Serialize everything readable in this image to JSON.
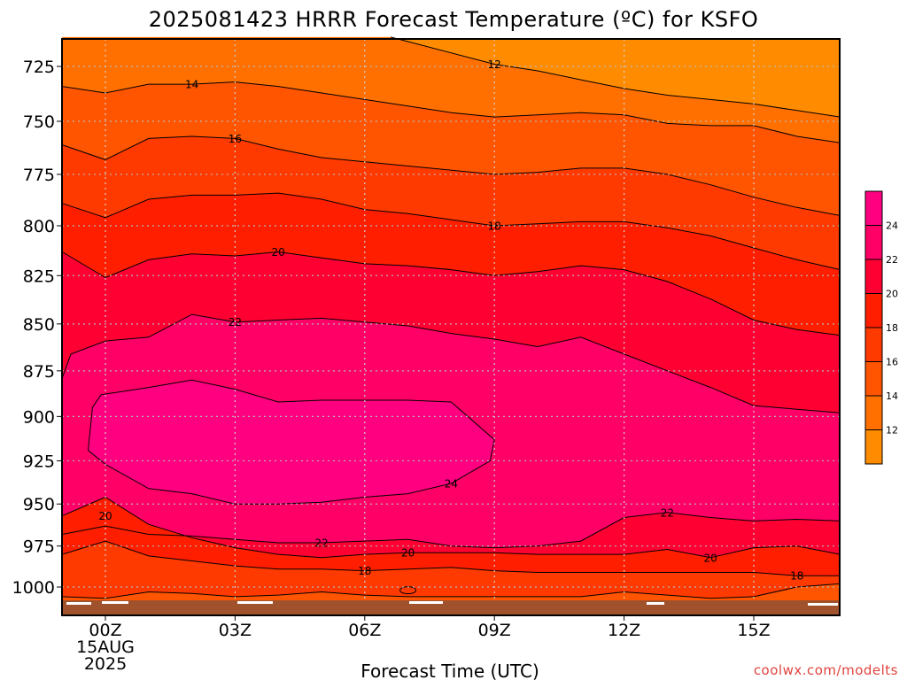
{
  "title": "2025081423 HRRR Forecast Temperature (ºC) for KSFO",
  "credit": "coolwx.com/modelts",
  "chart_data": {
    "type": "heatmap",
    "title": "2025081423 HRRR Forecast Temperature (ºC) for KSFO",
    "xlabel": "Forecast Time (UTC)",
    "ylabel": "",
    "x_ticks": [
      {
        "hour": 0,
        "label": "00Z",
        "sub": [
          "15AUG",
          "2025"
        ]
      },
      {
        "hour": 3,
        "label": "03Z",
        "sub": []
      },
      {
        "hour": 6,
        "label": "06Z",
        "sub": []
      },
      {
        "hour": 9,
        "label": "09Z",
        "sub": []
      },
      {
        "hour": 12,
        "label": "12Z",
        "sub": []
      },
      {
        "hour": 15,
        "label": "15Z",
        "sub": []
      }
    ],
    "xlim_hours": [
      -1,
      17
    ],
    "y_ticks": [
      725,
      750,
      775,
      800,
      825,
      850,
      875,
      900,
      925,
      950,
      975,
      1000
    ],
    "ylim_hPa": [
      712,
      1012
    ],
    "y_scale": "log-pressure (inverted)",
    "grid": true,
    "colorbar": {
      "ticks": [
        12,
        14,
        16,
        18,
        20,
        22,
        24
      ],
      "levels": [
        10,
        12,
        14,
        16,
        18,
        20,
        22,
        24,
        26
      ],
      "colors": [
        "#ff8c00",
        "#ff7000",
        "#ff5500",
        "#ff3a00",
        "#ff1e00",
        "#ff0033",
        "#ff0066",
        "#ff0080"
      ]
    },
    "ground_color": "#a0522d",
    "contours": [
      {
        "level": 12,
        "label": "12",
        "points": [
          [
            6.6,
            712
          ],
          [
            9,
            724
          ],
          [
            10,
            727
          ],
          [
            11,
            731
          ],
          [
            12,
            735
          ],
          [
            13,
            738
          ],
          [
            14,
            740
          ],
          [
            15,
            742
          ],
          [
            16,
            745
          ],
          [
            17,
            748
          ]
        ]
      },
      {
        "level": 14,
        "label": "14",
        "points": [
          [
            -1,
            734
          ],
          [
            0,
            737
          ],
          [
            1,
            733
          ],
          [
            2,
            733
          ],
          [
            3,
            732
          ],
          [
            4,
            734
          ],
          [
            5,
            737
          ],
          [
            6,
            740
          ],
          [
            7,
            743
          ],
          [
            8,
            746
          ],
          [
            9,
            748
          ],
          [
            10,
            747
          ],
          [
            11,
            746
          ],
          [
            12,
            747
          ],
          [
            13,
            751
          ],
          [
            14,
            752
          ],
          [
            15,
            752
          ],
          [
            16,
            757
          ],
          [
            17,
            760
          ]
        ]
      },
      {
        "level": 16,
        "label": "16",
        "points": [
          [
            -1,
            761
          ],
          [
            0,
            768
          ],
          [
            1,
            758
          ],
          [
            2,
            757
          ],
          [
            3,
            758
          ],
          [
            4,
            763
          ],
          [
            5,
            767
          ],
          [
            6,
            769
          ],
          [
            7,
            771
          ],
          [
            8,
            773
          ],
          [
            9,
            775
          ],
          [
            10,
            774
          ],
          [
            11,
            772
          ],
          [
            12,
            772
          ],
          [
            13,
            775
          ],
          [
            14,
            780
          ],
          [
            15,
            786
          ],
          [
            16,
            791
          ],
          [
            17,
            795
          ]
        ]
      },
      {
        "level": 18,
        "label": "18",
        "points": [
          [
            -1,
            789
          ],
          [
            0,
            796
          ],
          [
            1,
            787
          ],
          [
            2,
            785
          ],
          [
            3,
            785
          ],
          [
            4,
            784
          ],
          [
            5,
            787
          ],
          [
            6,
            792
          ],
          [
            7,
            794
          ],
          [
            8,
            797
          ],
          [
            9,
            800
          ],
          [
            10,
            799
          ],
          [
            11,
            798
          ],
          [
            12,
            798
          ],
          [
            13,
            801
          ],
          [
            14,
            805
          ],
          [
            15,
            811
          ],
          [
            16,
            817
          ],
          [
            17,
            822
          ]
        ]
      },
      {
        "level": 20,
        "label": "20",
        "points": [
          [
            -1,
            813
          ],
          [
            0,
            826
          ],
          [
            1,
            817
          ],
          [
            2,
            814
          ],
          [
            3,
            815
          ],
          [
            4,
            813
          ],
          [
            5,
            816
          ],
          [
            6,
            819
          ],
          [
            7,
            820
          ],
          [
            8,
            822
          ],
          [
            9,
            825
          ],
          [
            10,
            823
          ],
          [
            11,
            820
          ],
          [
            12,
            822
          ],
          [
            13,
            828
          ],
          [
            14,
            837
          ],
          [
            15,
            848
          ],
          [
            16,
            853
          ],
          [
            17,
            856
          ]
        ]
      },
      {
        "level": 22,
        "label": "22",
        "points": [
          [
            -1,
            879
          ],
          [
            -0.8,
            866
          ],
          [
            0,
            859
          ],
          [
            1,
            857
          ],
          [
            2,
            845
          ],
          [
            3,
            849
          ],
          [
            4,
            848
          ],
          [
            5,
            847
          ],
          [
            6,
            849
          ],
          [
            7,
            851
          ],
          [
            8,
            855
          ],
          [
            9,
            858
          ],
          [
            10,
            862
          ],
          [
            11,
            857
          ],
          [
            12,
            866
          ],
          [
            13,
            875
          ],
          [
            14,
            884
          ],
          [
            15,
            894
          ],
          [
            16,
            896
          ],
          [
            17,
            898
          ]
        ]
      },
      {
        "level": 24,
        "label": "24",
        "points": [
          [
            -0.3,
            895
          ],
          [
            -0.1,
            888
          ],
          [
            1,
            884
          ],
          [
            2,
            880
          ],
          [
            3,
            885
          ],
          [
            4,
            892
          ],
          [
            5,
            891
          ],
          [
            6,
            891
          ],
          [
            7,
            891
          ],
          [
            8,
            892
          ],
          [
            9,
            913
          ],
          [
            8.9,
            925
          ],
          [
            8,
            938
          ],
          [
            7,
            944
          ],
          [
            6,
            946
          ],
          [
            5,
            949
          ],
          [
            4,
            950
          ],
          [
            3,
            950
          ],
          [
            2,
            944
          ],
          [
            1,
            941
          ],
          [
            0,
            927
          ],
          [
            -0.4,
            919
          ],
          [
            -0.3,
            895
          ]
        ]
      },
      {
        "level": 22,
        "label": "22",
        "points": [
          [
            -1,
            968
          ],
          [
            0,
            963
          ],
          [
            1,
            968
          ],
          [
            2,
            969
          ],
          [
            3,
            971
          ],
          [
            4,
            973
          ],
          [
            5,
            973
          ],
          [
            6,
            972
          ],
          [
            7,
            971
          ],
          [
            8,
            975
          ],
          [
            9,
            976
          ],
          [
            10,
            975
          ],
          [
            11,
            972
          ],
          [
            12,
            958
          ],
          [
            13,
            955
          ],
          [
            14,
            958
          ],
          [
            15,
            960
          ],
          [
            16,
            959
          ],
          [
            17,
            960
          ]
        ]
      },
      {
        "level": 20,
        "label": "20",
        "points": [
          [
            -1,
            957
          ],
          [
            0,
            946
          ],
          [
            1,
            962
          ],
          [
            2,
            970
          ],
          [
            3,
            976
          ],
          [
            4,
            980
          ],
          [
            5,
            982
          ],
          [
            6,
            980
          ],
          [
            7,
            979
          ],
          [
            8,
            979
          ],
          [
            9,
            979
          ],
          [
            10,
            980
          ],
          [
            11,
            980
          ],
          [
            12,
            980
          ],
          [
            13,
            977
          ],
          [
            14,
            982
          ],
          [
            15,
            976
          ],
          [
            16,
            975
          ],
          [
            17,
            980
          ]
        ]
      },
      {
        "level": 18,
        "label": "18",
        "points": [
          [
            -1,
            980
          ],
          [
            0,
            972
          ],
          [
            1,
            981
          ],
          [
            2,
            984
          ],
          [
            3,
            987
          ],
          [
            4,
            989
          ],
          [
            5,
            989
          ],
          [
            6,
            990
          ],
          [
            7,
            989
          ],
          [
            8,
            988
          ],
          [
            9,
            990
          ],
          [
            10,
            991
          ],
          [
            11,
            991
          ],
          [
            12,
            991
          ],
          [
            13,
            991
          ],
          [
            14,
            991
          ],
          [
            15,
            991
          ],
          [
            16,
            993
          ],
          [
            17,
            993
          ]
        ]
      },
      {
        "level": 16,
        "label": "",
        "points": [
          [
            -1,
            1006
          ],
          [
            0,
            1007
          ],
          [
            1,
            1003
          ],
          [
            2,
            1004
          ],
          [
            3,
            1006
          ],
          [
            4,
            1005
          ],
          [
            5,
            1003
          ],
          [
            6,
            1005
          ],
          [
            7,
            1006
          ],
          [
            8,
            1006
          ],
          [
            9,
            1006
          ],
          [
            10,
            1006
          ],
          [
            11,
            1006
          ],
          [
            12,
            1003
          ],
          [
            13,
            1005
          ],
          [
            14,
            1007
          ],
          [
            15,
            1006
          ],
          [
            16,
            1000
          ],
          [
            17,
            998
          ]
        ]
      }
    ]
  }
}
